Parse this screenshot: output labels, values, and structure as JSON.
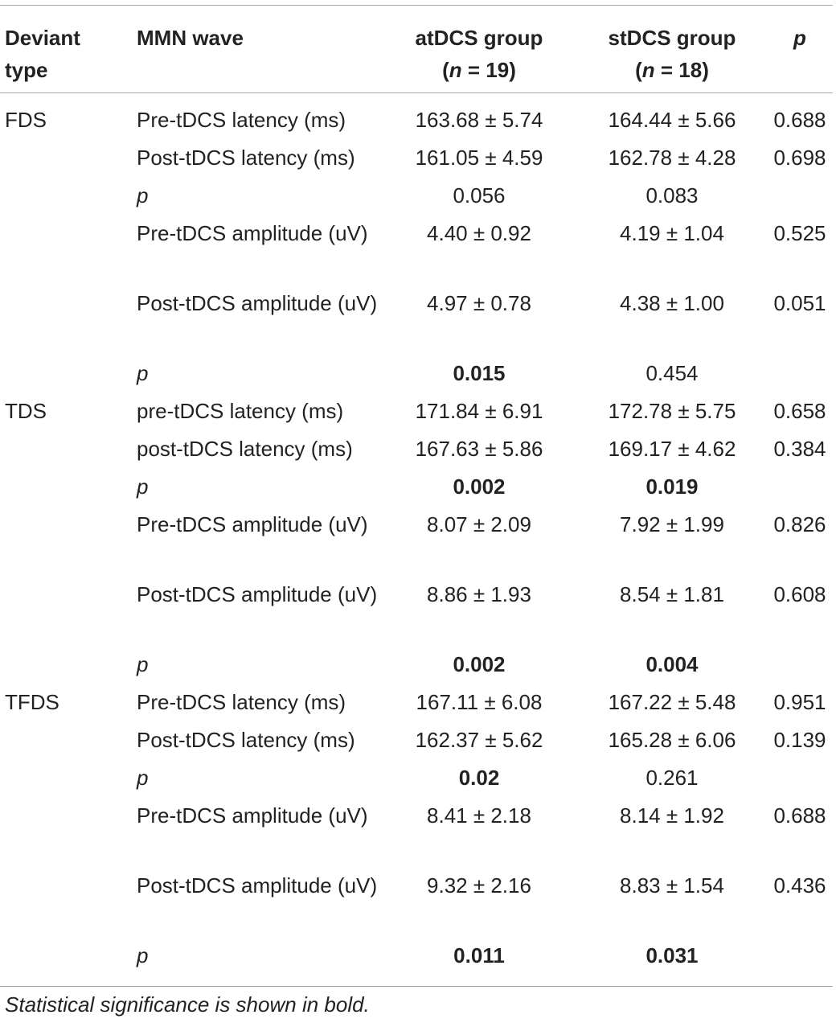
{
  "header": {
    "deviant_type": [
      "Deviant",
      "type"
    ],
    "mmn_wave": "MMN wave",
    "at_group": "atDCS group",
    "at_n": [
      "(",
      "n",
      " = 19)"
    ],
    "st_group": "stDCS group",
    "st_n": [
      "(",
      "n",
      " = 18)"
    ],
    "p": "p"
  },
  "rows": [
    {
      "type": "FDS",
      "wave": "Pre-tDCS latency (ms)",
      "at": "163.68 ± 5.74",
      "st": "164.44 ± 5.66",
      "p": "0.688"
    },
    {
      "type": "",
      "wave": "Post-tDCS latency (ms)",
      "at": "161.05 ± 4.59",
      "st": "162.78 ± 4.28",
      "p": "0.698"
    },
    {
      "type": "",
      "wave": "p",
      "at": "0.056",
      "st": "0.083",
      "p": ""
    },
    {
      "type": "",
      "wave": "Pre-tDCS amplitude (uV)",
      "at": "4.40 ± 0.92",
      "st": "4.19 ± 1.04",
      "p": "0.525"
    },
    {
      "type": "",
      "wave": "Post-tDCS amplitude (uV)",
      "at": "4.97 ± 0.78",
      "st": "4.38 ± 1.00",
      "p": "0.051"
    },
    {
      "type": "",
      "wave": "p",
      "at": "0.015",
      "st": "0.454",
      "p": ""
    },
    {
      "type": "TDS",
      "wave": "pre-tDCS latency (ms)",
      "at": "171.84 ± 6.91",
      "st": "172.78 ± 5.75",
      "p": "0.658"
    },
    {
      "type": "",
      "wave": "post-tDCS latency (ms)",
      "at": "167.63 ± 5.86",
      "st": "169.17 ± 4.62",
      "p": "0.384"
    },
    {
      "type": "",
      "wave": "p",
      "at": "0.002",
      "st": "0.019",
      "p": ""
    },
    {
      "type": "",
      "wave": "Pre-tDCS amplitude (uV)",
      "at": "8.07 ± 2.09",
      "st": "7.92 ± 1.99",
      "p": "0.826"
    },
    {
      "type": "",
      "wave": "Post-tDCS amplitude (uV)",
      "at": "8.86 ± 1.93",
      "st": "8.54 ± 1.81",
      "p": "0.608"
    },
    {
      "type": "",
      "wave": "p",
      "at": "0.002",
      "st": "0.004",
      "p": ""
    },
    {
      "type": "TFDS",
      "wave": "Pre-tDCS latency (ms)",
      "at": "167.11 ± 6.08",
      "st": "167.22 ± 5.48",
      "p": "0.951"
    },
    {
      "type": "",
      "wave": "Post-tDCS latency (ms)",
      "at": "162.37 ± 5.62",
      "st": "165.28 ± 6.06",
      "p": "0.139"
    },
    {
      "type": "",
      "wave": "p",
      "at": "0.02",
      "st": "0.261",
      "p": ""
    },
    {
      "type": "",
      "wave": "Pre-tDCS amplitude (uV)",
      "at": "8.41 ± 2.18",
      "st": "8.14 ± 1.92",
      "p": "0.688"
    },
    {
      "type": "",
      "wave": "Post-tDCS amplitude (uV)",
      "at": "9.32 ± 2.16",
      "st": "8.83 ± 1.54",
      "p": "0.436"
    },
    {
      "type": "",
      "wave": "p",
      "at": "0.011",
      "st": "0.031",
      "p": ""
    }
  ],
  "footnote": "Statistical significance is shown in bold."
}
